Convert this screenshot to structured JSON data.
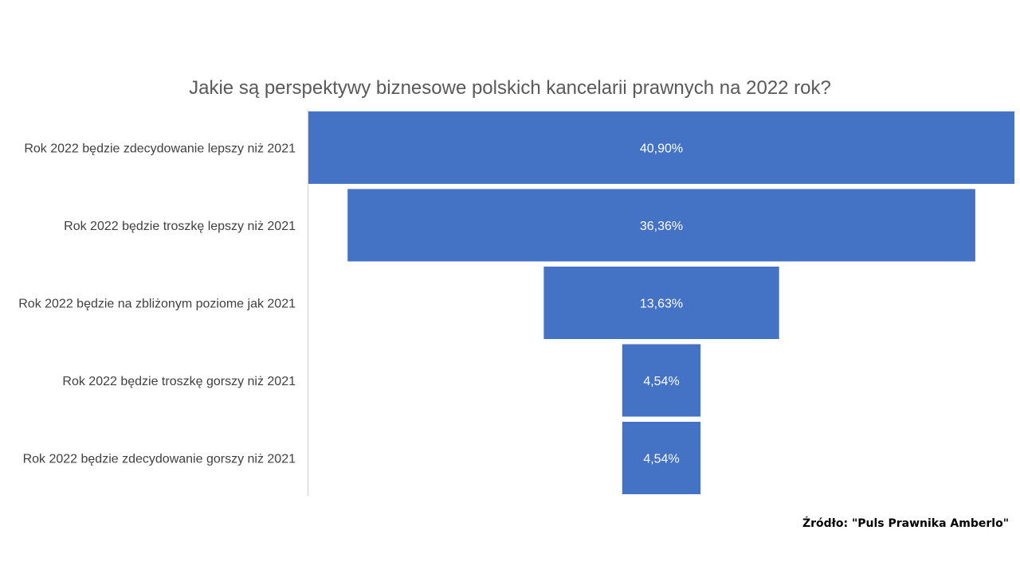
{
  "chart_data": {
    "type": "bar",
    "subtype": "funnel",
    "title": "Jakie są perspektywy biznesowe polskich kancelarii prawnych na 2022 rok?",
    "categories": [
      "Rok 2022 będzie zdecydowanie lepszy niż 2021",
      "Rok 2022 będzie troszkę lepszy niż 2021",
      "Rok 2022 będzie na zbliżonym poziome jak 2021",
      "Rok 2022 będzie troszkę gorszy niż 2021",
      "Rok 2022 będzie zdecydowanie gorszy niż 2021"
    ],
    "values": [
      40.9,
      36.36,
      13.63,
      4.54,
      4.54
    ],
    "data_labels": [
      "40,90%",
      "36,36%",
      "13,63%",
      "4,54%",
      "4,54%"
    ],
    "unit": "%",
    "grid": false,
    "legend": "none",
    "colors": {
      "bar": "#4472C4",
      "axis": "#D9D9D9",
      "title": "#595959",
      "labels": "#404040",
      "bar_label": "#FFFFFF"
    }
  },
  "source": "Źródło: \"Puls Prawnika Amberlo\""
}
